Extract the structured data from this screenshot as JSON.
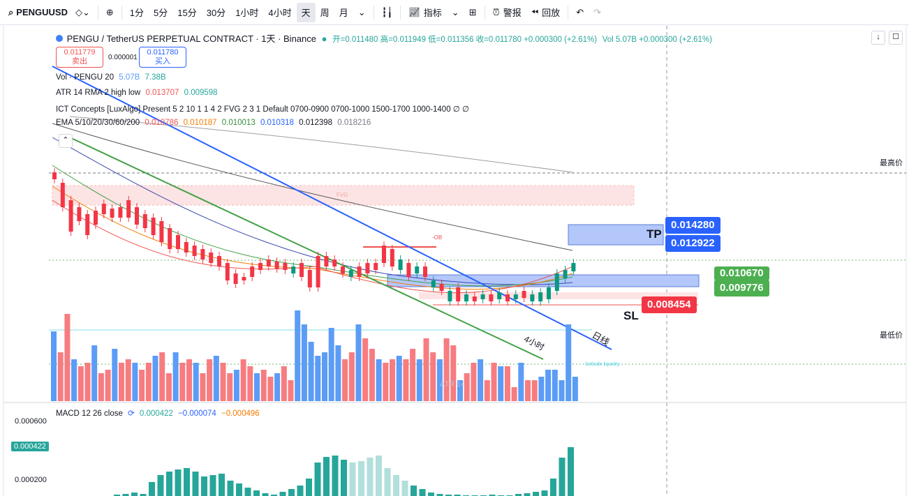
{
  "toolbar": {
    "symbol": "PENGUUSD",
    "timeframes": [
      "1分",
      "5分",
      "15分",
      "30分",
      "1小时",
      "4小时",
      "天",
      "周",
      "月"
    ],
    "active_timeframe": "天",
    "indicators_label": "指标",
    "alert_label": "警报",
    "replay_label": "回放"
  },
  "header": {
    "title": "PENGU / TetherUS PERPETUAL CONTRACT · 1天 · Binance",
    "ohlc": "开=0.011480 高=0.011949 低=0.011356 收=0.011780 +0.000300 (+2.61%)",
    "vol": "Vol 5.07B +0.000300 (+2.61%)"
  },
  "trade": {
    "sell_price": "0.011779",
    "sell_label": "卖出",
    "spread": "0.000001",
    "buy_price": "0.011780",
    "buy_label": "买入"
  },
  "legends": {
    "vol_label": "Vol · PENGU 20",
    "vol_v1": "5.07B",
    "vol_v2": "7.38B",
    "atr_label": "ATR 14 RMA 2 high low",
    "atr_v1": "0.013707",
    "atr_v2": "0.009598",
    "ict": "ICT Concepts [LuxAlgo] Present 5 2 10 1 1 4 2 FVG 2 3 1 Default 0700-0900 0700-1000 1500-1700 1000-1400 ∅ ∅",
    "ema_label": "EMA 5/10/20/30/60/200",
    "ema_vals": [
      "0.010786",
      "0.010187",
      "0.010013",
      "0.010318",
      "0.012398",
      "0.018216"
    ]
  },
  "annotations": {
    "tp_label": "TP",
    "sl_label": "SL",
    "tp1": "0.014280",
    "tp2": "0.012922",
    "entry1": "0.010670",
    "entry2": "0.009776",
    "sl": "0.008454",
    "line_4h": "4小时",
    "line_daily": "日线",
    "highest": "最高价",
    "lowest": "最低价",
    "fvg": "FVG",
    "ob": "-OB",
    "sellside": "Sellside liquidity",
    "atr_watermark": "ATR 14"
  },
  "macd": {
    "label": "MACD 12 26 close",
    "v1": "0.000422",
    "v2": "−0.000074",
    "v3": "−0.000496",
    "axis": [
      "0.000600",
      "0.000422",
      "0.000200"
    ]
  },
  "colors": {
    "up": "#26a69a",
    "down": "#ef5350",
    "blue": "#2962ff"
  }
}
